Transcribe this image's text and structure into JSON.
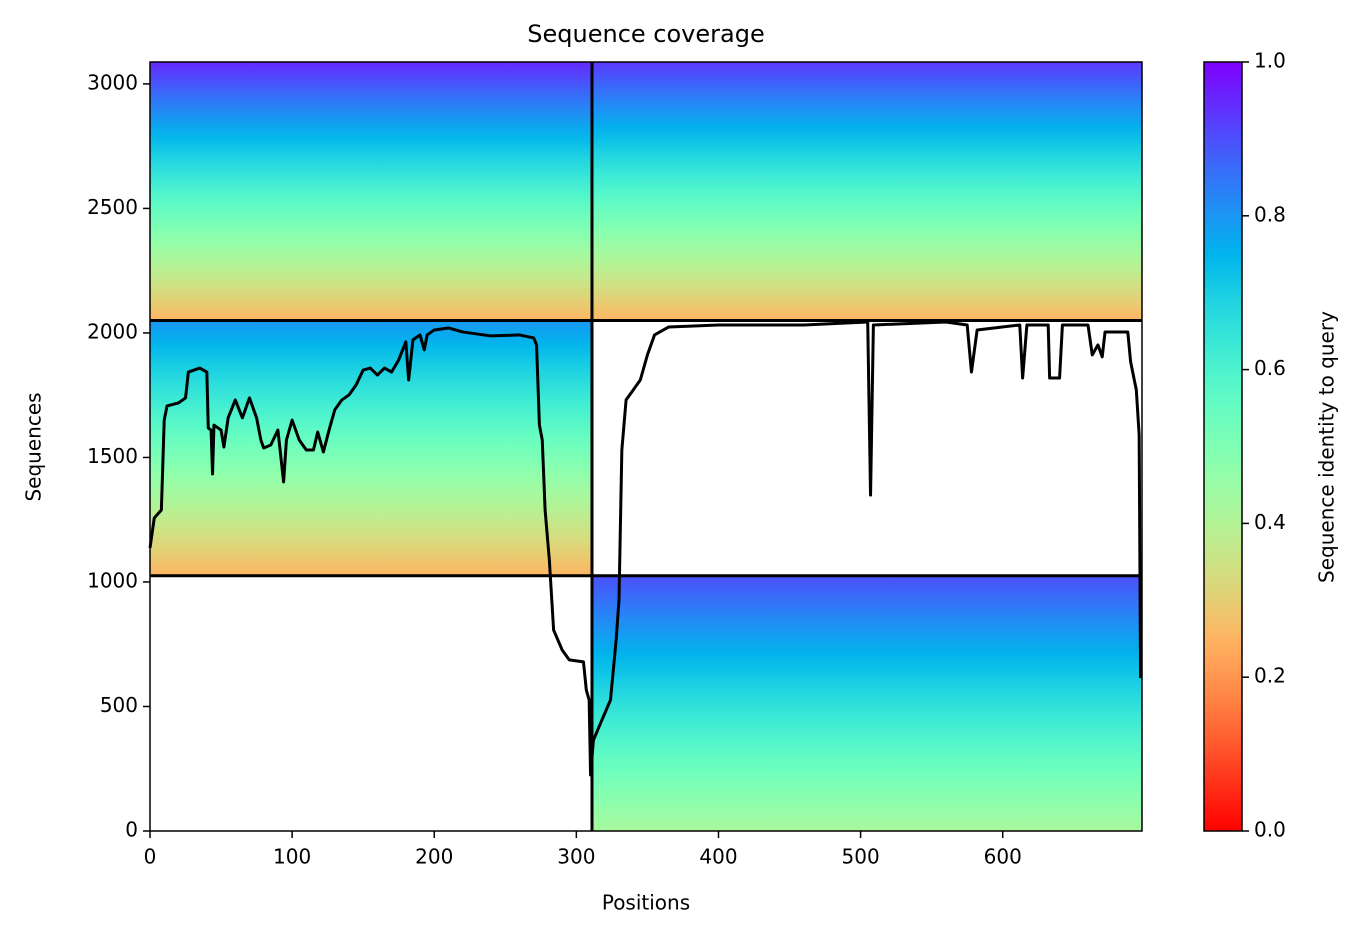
{
  "chart_data": {
    "type": "msa_coverage",
    "title": "Sequence coverage",
    "xlabel": "Positions",
    "ylabel": "Sequences",
    "colorbar_label": "Sequence identity to query",
    "xlim": [
      0,
      698
    ],
    "ylim": [
      0,
      3088
    ],
    "xticks": [
      0,
      100,
      200,
      300,
      400,
      500,
      600
    ],
    "yticks": [
      0,
      500,
      1000,
      1500,
      2000,
      2500,
      3000
    ],
    "clim": [
      0,
      1
    ],
    "cticks": [
      {
        "value": 0,
        "label": "0.0"
      },
      0.2,
      0.4,
      0.6,
      0.8,
      {
        "value": 1,
        "label": "1.0"
      }
    ],
    "colormap": "rainbow_r",
    "blocks": [
      {
        "x": [
          0,
          311
        ],
        "y": [
          2050,
          3088
        ],
        "identity": [
          0.25,
          0.95
        ]
      },
      {
        "x": [
          311,
          698
        ],
        "y": [
          2050,
          3088
        ],
        "identity": [
          0.25,
          0.93
        ]
      },
      {
        "x": [
          0,
          311
        ],
        "y": [
          1025,
          2050
        ],
        "identity": [
          0.25,
          0.8
        ]
      },
      {
        "x": [
          311,
          698
        ],
        "y": [
          0,
          1025
        ],
        "identity": [
          0.42,
          0.9
        ]
      }
    ],
    "dividers": {
      "x": [
        311
      ],
      "y": [
        1025,
        2050
      ]
    },
    "coverage": {
      "color": "#000000",
      "x": [
        0,
        3,
        8,
        10,
        12,
        20,
        25,
        27,
        35,
        40,
        41,
        43,
        44,
        45,
        50,
        52,
        55,
        60,
        65,
        70,
        75,
        78,
        80,
        85,
        90,
        94,
        96,
        100,
        105,
        110,
        115,
        118,
        122,
        126,
        130,
        135,
        140,
        145,
        150,
        155,
        160,
        165,
        170,
        175,
        180,
        182,
        185,
        190,
        193,
        195,
        200,
        210,
        220,
        240,
        260,
        270,
        272,
        274,
        276,
        278,
        281,
        284,
        290,
        295,
        305,
        307,
        309,
        310,
        312,
        318,
        324,
        328,
        330,
        332,
        335,
        340,
        345,
        350,
        355,
        365,
        400,
        460,
        505,
        507,
        509,
        560,
        575,
        578,
        582,
        612,
        614,
        617,
        632,
        633,
        640,
        642,
        660,
        663,
        667,
        670,
        672,
        688,
        690,
        694,
        696,
        697
      ],
      "values": [
        1137,
        1257,
        1289,
        1650,
        1707,
        1719,
        1739,
        1843,
        1859,
        1843,
        1618,
        1610,
        1434,
        1630,
        1610,
        1542,
        1659,
        1731,
        1659,
        1739,
        1659,
        1570,
        1538,
        1550,
        1610,
        1402,
        1570,
        1650,
        1570,
        1530,
        1530,
        1602,
        1522,
        1610,
        1691,
        1731,
        1751,
        1791,
        1851,
        1859,
        1831,
        1859,
        1843,
        1892,
        1964,
        1811,
        1972,
        1992,
        1932,
        1992,
        2012,
        2020,
        2004,
        1988,
        1992,
        1980,
        1952,
        1630,
        1570,
        1289,
        1088,
        807,
        727,
        687,
        679,
        566,
        526,
        225,
        365,
        446,
        526,
        767,
        928,
        1530,
        1731,
        1771,
        1811,
        1912,
        1992,
        2024,
        2032,
        2032,
        2044,
        1349,
        2032,
        2044,
        2032,
        1843,
        2012,
        2032,
        1819,
        2032,
        2032,
        1819,
        1819,
        2032,
        2032,
        1912,
        1952,
        1904,
        2004,
        2004,
        1884,
        1771,
        1590,
        614
      ]
    }
  }
}
